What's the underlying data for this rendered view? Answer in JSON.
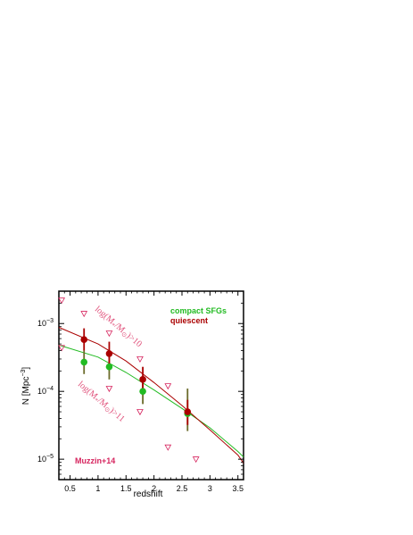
{
  "chart_data": {
    "type": "scatter",
    "xlabel": "redshift",
    "ylabel": "N [Mpc",
    "ylabel_sup": "−3",
    "ylabel_close": "]",
    "xlim": [
      0.3,
      3.6
    ],
    "ylim": [
      5e-06,
      0.003
    ],
    "yscale": "log",
    "xticks": [
      0.5,
      1,
      1.5,
      2,
      2.5,
      3,
      3.5
    ],
    "xtick_labels": [
      "0.5",
      "1",
      "1.5",
      "2",
      "2.5",
      "3",
      "3.5"
    ],
    "yticks": [
      1e-05,
      0.0001,
      0.001
    ],
    "ytick_base": "10",
    "ytick_exps": [
      "−5",
      "−4",
      "−3"
    ],
    "legend": {
      "placement": "top-right",
      "entries": [
        {
          "label": "compact SFGs",
          "color": "#22bb22"
        },
        {
          "label": "quiescent",
          "color": "#aa0000"
        }
      ]
    },
    "annotations": [
      {
        "text": "log(M",
        "sub": "*",
        "mid": "/M",
        "sub2": "⊙",
        "tail": ")>10",
        "x": 0.95,
        "y": 0.0011,
        "angle": 40
      },
      {
        "text": "log(M",
        "sub": "*",
        "mid": "/M",
        "sub2": "⊙",
        "tail": ")>11",
        "x": 0.95,
        "y": 8e-05,
        "angle": 40
      }
    ],
    "source_label": "Muzzin+14",
    "series": [
      {
        "name": "compact SFGs",
        "color": "#22bb22",
        "errcolor": "#6b6b2a",
        "points": [
          {
            "x": 0.75,
            "y": 0.00027,
            "ylo": 0.00018,
            "yhi": 0.0004
          },
          {
            "x": 1.2,
            "y": 0.00023,
            "ylo": 0.00015,
            "yhi": 0.00035
          },
          {
            "x": 1.8,
            "y": 0.0001,
            "ylo": 6.5e-05,
            "yhi": 0.00016
          },
          {
            "x": 2.6,
            "y": 4.7e-05,
            "ylo": 2.6e-05,
            "yhi": 0.00011
          }
        ],
        "fit": {
          "x": [
            0.3,
            1.0,
            1.5,
            2.0,
            2.5,
            3.0,
            3.5,
            3.6
          ],
          "y": [
            0.00048,
            0.00032,
            0.00019,
            0.000105,
            5.6e-05,
            2.9e-05,
            1.3e-05,
            1.08e-05
          ]
        }
      },
      {
        "name": "quiescent",
        "color": "#aa0000",
        "errcolor": "#aa0000",
        "points": [
          {
            "x": 0.75,
            "y": 0.00058,
            "ylo": 0.0004,
            "yhi": 0.00085
          },
          {
            "x": 1.2,
            "y": 0.00036,
            "ylo": 0.00024,
            "yhi": 0.00054
          },
          {
            "x": 1.8,
            "y": 0.00015,
            "ylo": 0.0001,
            "yhi": 0.00023
          },
          {
            "x": 2.6,
            "y": 5e-05,
            "ylo": 3.2e-05,
            "yhi": 7.5e-05
          }
        ],
        "fit": {
          "x": [
            0.3,
            1.0,
            1.5,
            2.0,
            2.5,
            3.0,
            3.5,
            3.6
          ],
          "y": [
            0.00088,
            0.0005,
            0.00028,
            0.000135,
            6.2e-05,
            2.7e-05,
            1.15e-05,
            8.8e-06
          ]
        }
      },
      {
        "name": "",
        "color": "#d6245e",
        "marker": "triangle-down",
        "points": [
          {
            "x": 0.35,
            "y": 0.0022
          },
          {
            "x": 0.35,
            "y": 0.00044
          },
          {
            "x": 0.75,
            "y": 0.0014
          },
          {
            "x": 1.2,
            "y": 0.00072
          },
          {
            "x": 1.2,
            "y": 0.00011
          },
          {
            "x": 1.75,
            "y": 0.0003
          },
          {
            "x": 1.75,
            "y": 5e-05
          },
          {
            "x": 2.25,
            "y": 0.00012
          },
          {
            "x": 2.25,
            "y": 1.5e-05
          },
          {
            "x": 2.75,
            "y": 1e-05
          }
        ]
      }
    ]
  }
}
